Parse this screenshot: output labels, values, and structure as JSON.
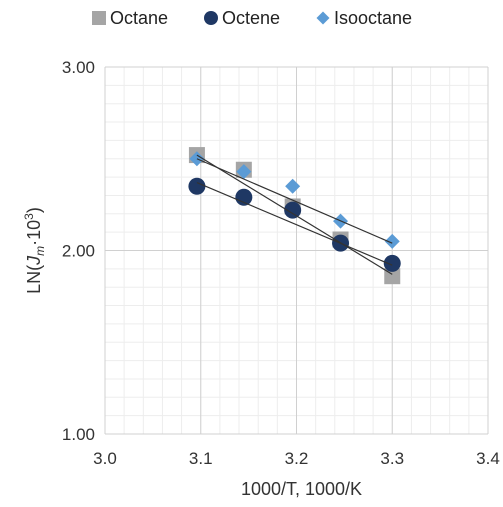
{
  "chart_data": {
    "type": "scatter",
    "xlabel": "1000/T, 1000/K",
    "ylabel": "LN(J_m·10^3)",
    "ylabel_parts": {
      "prefix": "LN(",
      "var": "J",
      "sub": "m",
      "mid": "·10",
      "sup": "3",
      "suffix": ")"
    },
    "xlim": [
      3.0,
      3.4
    ],
    "ylim": [
      1.0,
      3.0
    ],
    "x_ticks": [
      "3.0",
      "3.1",
      "3.2",
      "3.3",
      "3.4"
    ],
    "x_tick_values": [
      3.0,
      3.1,
      3.2,
      3.3,
      3.4
    ],
    "y_ticks": [
      "1.00",
      "2.00",
      "3.00"
    ],
    "y_tick_values": [
      1.0,
      2.0,
      3.0
    ],
    "grid": true,
    "legend_position": "top",
    "series": [
      {
        "name": "Octane",
        "marker": "square",
        "color": "#a5a5a5",
        "x": [
          3.096,
          3.145,
          3.196,
          3.246,
          3.3
        ],
        "y": [
          2.52,
          2.44,
          2.24,
          2.06,
          1.86
        ],
        "trendline": [
          [
            3.096,
            2.52
          ],
          [
            3.3,
            1.87
          ]
        ]
      },
      {
        "name": "Octene",
        "marker": "circle",
        "color": "#1f3864",
        "x": [
          3.096,
          3.145,
          3.196,
          3.246,
          3.3
        ],
        "y": [
          2.35,
          2.29,
          2.22,
          2.04,
          1.93
        ],
        "trendline": [
          [
            3.096,
            2.37
          ],
          [
            3.3,
            1.92
          ]
        ]
      },
      {
        "name": "Isooctane",
        "marker": "diamond",
        "color": "#5b9bd5",
        "x": [
          3.096,
          3.145,
          3.196,
          3.246,
          3.3
        ],
        "y": [
          2.5,
          2.43,
          2.35,
          2.16,
          2.05
        ],
        "trendline": [
          [
            3.096,
            2.5
          ],
          [
            3.3,
            2.04
          ]
        ]
      }
    ]
  }
}
